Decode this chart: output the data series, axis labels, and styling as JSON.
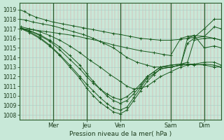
{
  "xlabel": "Pression niveau de la mer( hPa )",
  "bg_color": "#c8e8d8",
  "line_color": "#1a5c20",
  "grid_color_v": "#e0a0a0",
  "grid_color_h": "#a8ccc4",
  "ylim": [
    1007.5,
    1019.7
  ],
  "yticks": [
    1008,
    1009,
    1010,
    1011,
    1012,
    1013,
    1014,
    1015,
    1016,
    1017,
    1018,
    1019
  ],
  "day_labels": [
    "Mer",
    "Jeu",
    "Ven",
    "Sam",
    "Dim"
  ],
  "day_x": [
    1.0,
    2.0,
    3.0,
    4.5,
    5.5
  ],
  "xlim": [
    0.0,
    6.0
  ],
  "lines": [
    {
      "points": [
        [
          0.0,
          1019.0
        ],
        [
          0.15,
          1018.8
        ],
        [
          0.3,
          1018.5
        ],
        [
          0.5,
          1018.2
        ],
        [
          0.8,
          1017.9
        ],
        [
          1.0,
          1017.7
        ],
        [
          1.3,
          1017.5
        ],
        [
          1.6,
          1017.3
        ],
        [
          1.9,
          1017.1
        ],
        [
          2.2,
          1016.9
        ],
        [
          2.5,
          1016.7
        ],
        [
          2.8,
          1016.5
        ],
        [
          3.0,
          1016.4
        ],
        [
          3.3,
          1016.2
        ],
        [
          3.6,
          1016.0
        ],
        [
          3.9,
          1015.9
        ],
        [
          4.2,
          1015.8
        ],
        [
          4.5,
          1015.8
        ],
        [
          4.8,
          1015.9
        ],
        [
          5.0,
          1016.0
        ],
        [
          5.2,
          1016.1
        ],
        [
          5.5,
          1017.0
        ],
        [
          5.8,
          1018.0
        ],
        [
          6.0,
          1018.0
        ]
      ]
    },
    {
      "points": [
        [
          0.0,
          1018.0
        ],
        [
          0.2,
          1017.9
        ],
        [
          0.4,
          1017.7
        ],
        [
          0.7,
          1017.5
        ],
        [
          1.0,
          1017.3
        ],
        [
          1.3,
          1017.0
        ],
        [
          1.6,
          1016.7
        ],
        [
          1.9,
          1016.4
        ],
        [
          2.2,
          1016.0
        ],
        [
          2.5,
          1015.5
        ],
        [
          2.8,
          1015.0
        ],
        [
          3.0,
          1014.5
        ],
        [
          3.2,
          1014.0
        ],
        [
          3.5,
          1013.5
        ],
        [
          3.8,
          1013.2
        ],
        [
          4.0,
          1013.0
        ],
        [
          4.2,
          1013.0
        ],
        [
          4.5,
          1013.0
        ],
        [
          4.8,
          1013.2
        ],
        [
          5.0,
          1015.5
        ],
        [
          5.2,
          1016.0
        ],
        [
          5.5,
          1016.2
        ],
        [
          5.8,
          1017.2
        ],
        [
          6.0,
          1017.0
        ]
      ]
    },
    {
      "points": [
        [
          0.05,
          1017.2
        ],
        [
          0.3,
          1017.0
        ],
        [
          0.6,
          1016.7
        ],
        [
          0.9,
          1016.3
        ],
        [
          1.2,
          1015.8
        ],
        [
          1.5,
          1015.2
        ],
        [
          1.8,
          1014.5
        ],
        [
          2.1,
          1013.7
        ],
        [
          2.4,
          1013.0
        ],
        [
          2.7,
          1012.2
        ],
        [
          3.0,
          1011.5
        ],
        [
          3.2,
          1011.0
        ],
        [
          3.4,
          1010.7
        ],
        [
          3.6,
          1010.8
        ],
        [
          3.8,
          1011.0
        ],
        [
          4.0,
          1011.5
        ],
        [
          4.2,
          1012.0
        ],
        [
          4.5,
          1012.5
        ],
        [
          4.8,
          1013.0
        ],
        [
          5.0,
          1013.2
        ],
        [
          5.2,
          1013.3
        ],
        [
          5.5,
          1013.5
        ],
        [
          5.8,
          1013.5
        ],
        [
          6.0,
          1013.2
        ]
      ]
    },
    {
      "points": [
        [
          0.05,
          1017.1
        ],
        [
          0.3,
          1016.8
        ],
        [
          0.6,
          1016.4
        ],
        [
          0.9,
          1015.8
        ],
        [
          1.2,
          1015.1
        ],
        [
          1.5,
          1014.2
        ],
        [
          1.8,
          1013.2
        ],
        [
          2.0,
          1012.3
        ],
        [
          2.2,
          1011.5
        ],
        [
          2.4,
          1010.7
        ],
        [
          2.6,
          1010.0
        ],
        [
          2.8,
          1009.5
        ],
        [
          3.0,
          1009.2
        ],
        [
          3.2,
          1009.5
        ],
        [
          3.4,
          1010.2
        ],
        [
          3.6,
          1011.0
        ],
        [
          3.8,
          1012.0
        ],
        [
          4.0,
          1012.5
        ],
        [
          4.2,
          1013.0
        ],
        [
          4.5,
          1013.2
        ],
        [
          4.8,
          1013.3
        ],
        [
          5.0,
          1013.3
        ],
        [
          5.2,
          1013.2
        ],
        [
          5.5,
          1013.3
        ],
        [
          5.8,
          1013.2
        ],
        [
          6.0,
          1013.0
        ]
      ]
    },
    {
      "points": [
        [
          0.05,
          1017.0
        ],
        [
          0.3,
          1016.6
        ],
        [
          0.6,
          1016.0
        ],
        [
          0.9,
          1015.2
        ],
        [
          1.2,
          1014.2
        ],
        [
          1.5,
          1013.0
        ],
        [
          1.8,
          1011.8
        ],
        [
          2.0,
          1010.8
        ],
        [
          2.2,
          1010.0
        ],
        [
          2.4,
          1009.3
        ],
        [
          2.6,
          1008.8
        ],
        [
          2.8,
          1008.3
        ],
        [
          3.0,
          1008.1
        ],
        [
          3.2,
          1008.5
        ],
        [
          3.4,
          1009.5
        ],
        [
          3.6,
          1010.5
        ],
        [
          3.8,
          1011.5
        ],
        [
          4.0,
          1012.2
        ],
        [
          4.2,
          1012.8
        ],
        [
          4.5,
          1013.0
        ],
        [
          4.8,
          1013.2
        ],
        [
          5.0,
          1016.0
        ],
        [
          5.2,
          1016.3
        ],
        [
          5.5,
          1015.0
        ],
        [
          5.8,
          1015.2
        ],
        [
          6.0,
          1015.0
        ]
      ]
    },
    {
      "points": [
        [
          0.05,
          1017.0
        ],
        [
          0.3,
          1016.7
        ],
        [
          0.6,
          1016.1
        ],
        [
          0.9,
          1015.3
        ],
        [
          1.2,
          1014.3
        ],
        [
          1.5,
          1013.2
        ],
        [
          1.8,
          1012.0
        ],
        [
          2.0,
          1011.2
        ],
        [
          2.2,
          1010.5
        ],
        [
          2.4,
          1009.8
        ],
        [
          2.6,
          1009.2
        ],
        [
          2.8,
          1008.7
        ],
        [
          3.0,
          1008.5
        ],
        [
          3.2,
          1008.8
        ],
        [
          3.4,
          1009.8
        ],
        [
          3.6,
          1010.8
        ],
        [
          3.8,
          1011.8
        ],
        [
          4.0,
          1012.3
        ],
        [
          4.2,
          1012.8
        ],
        [
          4.5,
          1013.0
        ],
        [
          4.8,
          1013.2
        ],
        [
          5.0,
          1013.3
        ],
        [
          5.2,
          1013.3
        ],
        [
          5.5,
          1013.2
        ],
        [
          5.8,
          1013.0
        ],
        [
          6.0,
          1013.0
        ]
      ]
    },
    {
      "points": [
        [
          0.05,
          1017.0
        ],
        [
          0.3,
          1016.8
        ],
        [
          0.6,
          1016.3
        ],
        [
          0.9,
          1015.7
        ],
        [
          1.2,
          1014.8
        ],
        [
          1.5,
          1013.8
        ],
        [
          1.8,
          1012.8
        ],
        [
          2.0,
          1012.0
        ],
        [
          2.2,
          1011.3
        ],
        [
          2.4,
          1010.7
        ],
        [
          2.6,
          1010.2
        ],
        [
          2.8,
          1009.8
        ],
        [
          3.0,
          1009.6
        ],
        [
          3.2,
          1009.9
        ],
        [
          3.4,
          1010.5
        ],
        [
          3.6,
          1011.2
        ],
        [
          3.8,
          1012.0
        ],
        [
          4.0,
          1012.5
        ],
        [
          4.2,
          1013.0
        ],
        [
          4.5,
          1013.2
        ],
        [
          4.8,
          1013.3
        ],
        [
          5.0,
          1013.5
        ],
        [
          5.2,
          1015.8
        ],
        [
          5.5,
          1016.0
        ],
        [
          5.8,
          1016.0
        ],
        [
          6.0,
          1015.8
        ]
      ]
    },
    {
      "points": [
        [
          0.05,
          1017.0
        ],
        [
          0.4,
          1016.9
        ],
        [
          0.8,
          1016.7
        ],
        [
          1.2,
          1016.5
        ],
        [
          1.6,
          1016.3
        ],
        [
          2.0,
          1016.0
        ],
        [
          2.4,
          1015.7
        ],
        [
          2.8,
          1015.3
        ],
        [
          3.2,
          1015.0
        ],
        [
          3.6,
          1014.7
        ],
        [
          4.0,
          1014.5
        ],
        [
          4.3,
          1014.3
        ],
        [
          4.5,
          1014.2
        ],
        [
          4.8,
          1016.0
        ],
        [
          5.0,
          1016.2
        ],
        [
          5.2,
          1016.3
        ],
        [
          5.5,
          1016.2
        ],
        [
          5.8,
          1016.0
        ],
        [
          6.0,
          1015.8
        ]
      ]
    }
  ]
}
